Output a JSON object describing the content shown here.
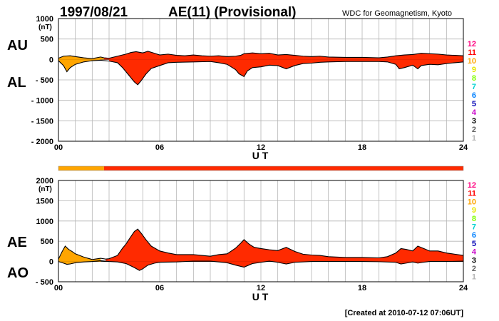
{
  "header": {
    "date": "1997/08/21",
    "title": "AE(11) (Provisional)",
    "source": "WDC for Geomagnetism, Kyoto"
  },
  "footer": {
    "created": "[Created at 2010-07-12 07:06UT]"
  },
  "colors": {
    "fill_main": "#ff2a00",
    "fill_early": "#ffa500",
    "outline": "#000000",
    "grid": "#b4b4b4",
    "quality_bar_early": "#ffa500",
    "quality_bar_main": "#ff2a00"
  },
  "station_scale": [
    {
      "label": "12",
      "color": "#ff007f"
    },
    {
      "label": "11",
      "color": "#ff0000"
    },
    {
      "label": "10",
      "color": "#ffa500"
    },
    {
      "label": "9",
      "color": "#e6e600"
    },
    {
      "label": "8",
      "color": "#7fff00"
    },
    {
      "label": "7",
      "color": "#00d2d2"
    },
    {
      "label": "6",
      "color": "#0080ff"
    },
    {
      "label": "5",
      "color": "#0000b4"
    },
    {
      "label": "4",
      "color": "#c800c8"
    },
    {
      "label": "3",
      "color": "#000000"
    },
    {
      "label": "2",
      "color": "#646464"
    },
    {
      "label": "1",
      "color": "#b4b4b4"
    }
  ],
  "quality_bar": {
    "station_count_change_ut": 2.7,
    "early_stations": 10,
    "late_stations": 11
  },
  "chart_data": [
    {
      "type": "area",
      "panel": "AU/AL",
      "labels": [
        "AU",
        "AL"
      ],
      "unit": "(nT)",
      "xlabel": "U T",
      "xlim": [
        0,
        24
      ],
      "xticks": [
        "00",
        "06",
        "12",
        "18",
        "24"
      ],
      "ylim": [
        -2000,
        1000
      ],
      "yticks": [
        1000,
        500,
        0,
        -500,
        -1000,
        -1500,
        -2000
      ],
      "ytick_labels": [
        "1000",
        "500",
        "0",
        "- 500",
        "- 1000",
        "- 1500",
        "- 2000"
      ],
      "grid": true,
      "series": [
        {
          "key": "AU",
          "values": [
            [
              0.0,
              30
            ],
            [
              0.3,
              80
            ],
            [
              0.7,
              90
            ],
            [
              1.0,
              70
            ],
            [
              1.5,
              40
            ],
            [
              2.0,
              20
            ],
            [
              2.5,
              60
            ],
            [
              2.7,
              40
            ],
            [
              3.0,
              30
            ],
            [
              3.5,
              80
            ],
            [
              4.0,
              130
            ],
            [
              4.3,
              170
            ],
            [
              4.6,
              190
            ],
            [
              5.0,
              160
            ],
            [
              5.3,
              200
            ],
            [
              5.7,
              150
            ],
            [
              6.0,
              110
            ],
            [
              6.5,
              130
            ],
            [
              7.0,
              100
            ],
            [
              7.5,
              90
            ],
            [
              8.0,
              110
            ],
            [
              8.5,
              90
            ],
            [
              9.0,
              80
            ],
            [
              9.5,
              90
            ],
            [
              10.0,
              70
            ],
            [
              10.5,
              80
            ],
            [
              10.8,
              100
            ],
            [
              11.0,
              140
            ],
            [
              11.5,
              160
            ],
            [
              12.0,
              140
            ],
            [
              12.5,
              150
            ],
            [
              13.0,
              110
            ],
            [
              13.5,
              120
            ],
            [
              14.0,
              100
            ],
            [
              14.5,
              80
            ],
            [
              15.0,
              70
            ],
            [
              15.5,
              80
            ],
            [
              16.0,
              60
            ],
            [
              17.0,
              50
            ],
            [
              18.0,
              50
            ],
            [
              19.0,
              40
            ],
            [
              19.5,
              60
            ],
            [
              20.0,
              90
            ],
            [
              20.5,
              110
            ],
            [
              21.0,
              120
            ],
            [
              21.5,
              150
            ],
            [
              22.0,
              140
            ],
            [
              22.5,
              130
            ],
            [
              23.0,
              110
            ],
            [
              23.5,
              100
            ],
            [
              24.0,
              90
            ]
          ]
        },
        {
          "key": "AL",
          "values": [
            [
              0.0,
              -30
            ],
            [
              0.3,
              -150
            ],
            [
              0.5,
              -300
            ],
            [
              0.7,
              -200
            ],
            [
              1.0,
              -120
            ],
            [
              1.5,
              -60
            ],
            [
              2.0,
              -30
            ],
            [
              2.5,
              -20
            ],
            [
              3.0,
              -40
            ],
            [
              3.5,
              -80
            ],
            [
              3.8,
              -200
            ],
            [
              4.0,
              -300
            ],
            [
              4.3,
              -450
            ],
            [
              4.5,
              -550
            ],
            [
              4.7,
              -620
            ],
            [
              4.9,
              -520
            ],
            [
              5.2,
              -350
            ],
            [
              5.5,
              -220
            ],
            [
              6.0,
              -150
            ],
            [
              6.5,
              -80
            ],
            [
              7.0,
              -70
            ],
            [
              8.0,
              -60
            ],
            [
              9.0,
              -50
            ],
            [
              9.5,
              -80
            ],
            [
              10.0,
              -120
            ],
            [
              10.5,
              -250
            ],
            [
              10.7,
              -350
            ],
            [
              11.0,
              -420
            ],
            [
              11.2,
              -280
            ],
            [
              11.5,
              -200
            ],
            [
              12.0,
              -180
            ],
            [
              12.5,
              -140
            ],
            [
              13.0,
              -150
            ],
            [
              13.5,
              -230
            ],
            [
              14.0,
              -150
            ],
            [
              14.5,
              -100
            ],
            [
              15.0,
              -90
            ],
            [
              15.5,
              -70
            ],
            [
              16.0,
              -60
            ],
            [
              17.0,
              -50
            ],
            [
              18.0,
              -50
            ],
            [
              19.0,
              -50
            ],
            [
              19.5,
              -60
            ],
            [
              20.0,
              -120
            ],
            [
              20.2,
              -230
            ],
            [
              20.5,
              -200
            ],
            [
              21.0,
              -140
            ],
            [
              21.3,
              -230
            ],
            [
              21.5,
              -150
            ],
            [
              22.0,
              -120
            ],
            [
              22.5,
              -130
            ],
            [
              23.0,
              -100
            ],
            [
              23.5,
              -80
            ],
            [
              24.0,
              -60
            ]
          ]
        }
      ]
    },
    {
      "type": "area",
      "panel": "AE/AO",
      "labels": [
        "AE",
        "AO"
      ],
      "unit": "(nT)",
      "xlabel": "U T",
      "xlim": [
        0,
        24
      ],
      "xticks": [
        "00",
        "06",
        "12",
        "18",
        "24"
      ],
      "ylim": [
        -500,
        2000
      ],
      "yticks": [
        2000,
        1500,
        1000,
        500,
        0,
        -500
      ],
      "ytick_labels": [
        "2000",
        "1500",
        "1000",
        "500",
        "0",
        "- 500"
      ],
      "grid": true,
      "series": [
        {
          "key": "AE",
          "values": [
            [
              0.0,
              60
            ],
            [
              0.2,
              230
            ],
            [
              0.4,
              380
            ],
            [
              0.6,
              300
            ],
            [
              0.8,
              250
            ],
            [
              1.0,
              190
            ],
            [
              1.5,
              110
            ],
            [
              2.0,
              50
            ],
            [
              2.5,
              80
            ],
            [
              2.8,
              60
            ],
            [
              3.0,
              70
            ],
            [
              3.5,
              150
            ],
            [
              3.8,
              330
            ],
            [
              4.0,
              430
            ],
            [
              4.3,
              620
            ],
            [
              4.5,
              740
            ],
            [
              4.7,
              800
            ],
            [
              4.9,
              700
            ],
            [
              5.2,
              530
            ],
            [
              5.5,
              380
            ],
            [
              6.0,
              260
            ],
            [
              6.5,
              210
            ],
            [
              7.0,
              170
            ],
            [
              8.0,
              170
            ],
            [
              9.0,
              130
            ],
            [
              9.5,
              170
            ],
            [
              10.0,
              190
            ],
            [
              10.5,
              330
            ],
            [
              10.8,
              450
            ],
            [
              11.0,
              540
            ],
            [
              11.3,
              430
            ],
            [
              11.6,
              350
            ],
            [
              12.0,
              320
            ],
            [
              12.5,
              290
            ],
            [
              13.0,
              270
            ],
            [
              13.5,
              350
            ],
            [
              14.0,
              250
            ],
            [
              14.5,
              180
            ],
            [
              15.0,
              160
            ],
            [
              15.5,
              150
            ],
            [
              16.0,
              120
            ],
            [
              17.0,
              100
            ],
            [
              18.0,
              100
            ],
            [
              19.0,
              90
            ],
            [
              19.5,
              120
            ],
            [
              20.0,
              210
            ],
            [
              20.3,
              320
            ],
            [
              20.6,
              300
            ],
            [
              21.0,
              260
            ],
            [
              21.3,
              380
            ],
            [
              21.6,
              330
            ],
            [
              22.0,
              260
            ],
            [
              22.5,
              260
            ],
            [
              23.0,
              210
            ],
            [
              23.5,
              180
            ],
            [
              24.0,
              150
            ]
          ]
        },
        {
          "key": "AO",
          "values": [
            [
              0.0,
              0
            ],
            [
              0.3,
              -40
            ],
            [
              0.5,
              -70
            ],
            [
              0.7,
              -60
            ],
            [
              1.0,
              -30
            ],
            [
              1.5,
              -10
            ],
            [
              2.0,
              0
            ],
            [
              2.5,
              20
            ],
            [
              3.0,
              0
            ],
            [
              3.5,
              -10
            ],
            [
              4.0,
              -50
            ],
            [
              4.5,
              -150
            ],
            [
              4.8,
              -220
            ],
            [
              5.0,
              -180
            ],
            [
              5.3,
              -90
            ],
            [
              5.7,
              -40
            ],
            [
              6.0,
              -20
            ],
            [
              7.0,
              -10
            ],
            [
              8.0,
              10
            ],
            [
              9.0,
              10
            ],
            [
              9.5,
              -10
            ],
            [
              10.0,
              -30
            ],
            [
              10.5,
              -90
            ],
            [
              11.0,
              -140
            ],
            [
              11.5,
              -50
            ],
            [
              12.0,
              -20
            ],
            [
              12.5,
              10
            ],
            [
              13.0,
              -20
            ],
            [
              13.5,
              -60
            ],
            [
              14.0,
              -20
            ],
            [
              15.0,
              0
            ],
            [
              16.0,
              0
            ],
            [
              17.0,
              0
            ],
            [
              18.0,
              0
            ],
            [
              19.0,
              -5
            ],
            [
              20.0,
              -20
            ],
            [
              20.3,
              -60
            ],
            [
              20.6,
              -40
            ],
            [
              21.0,
              -10
            ],
            [
              21.3,
              -40
            ],
            [
              21.6,
              -20
            ],
            [
              22.0,
              0
            ],
            [
              23.0,
              0
            ],
            [
              24.0,
              10
            ]
          ]
        }
      ]
    }
  ]
}
